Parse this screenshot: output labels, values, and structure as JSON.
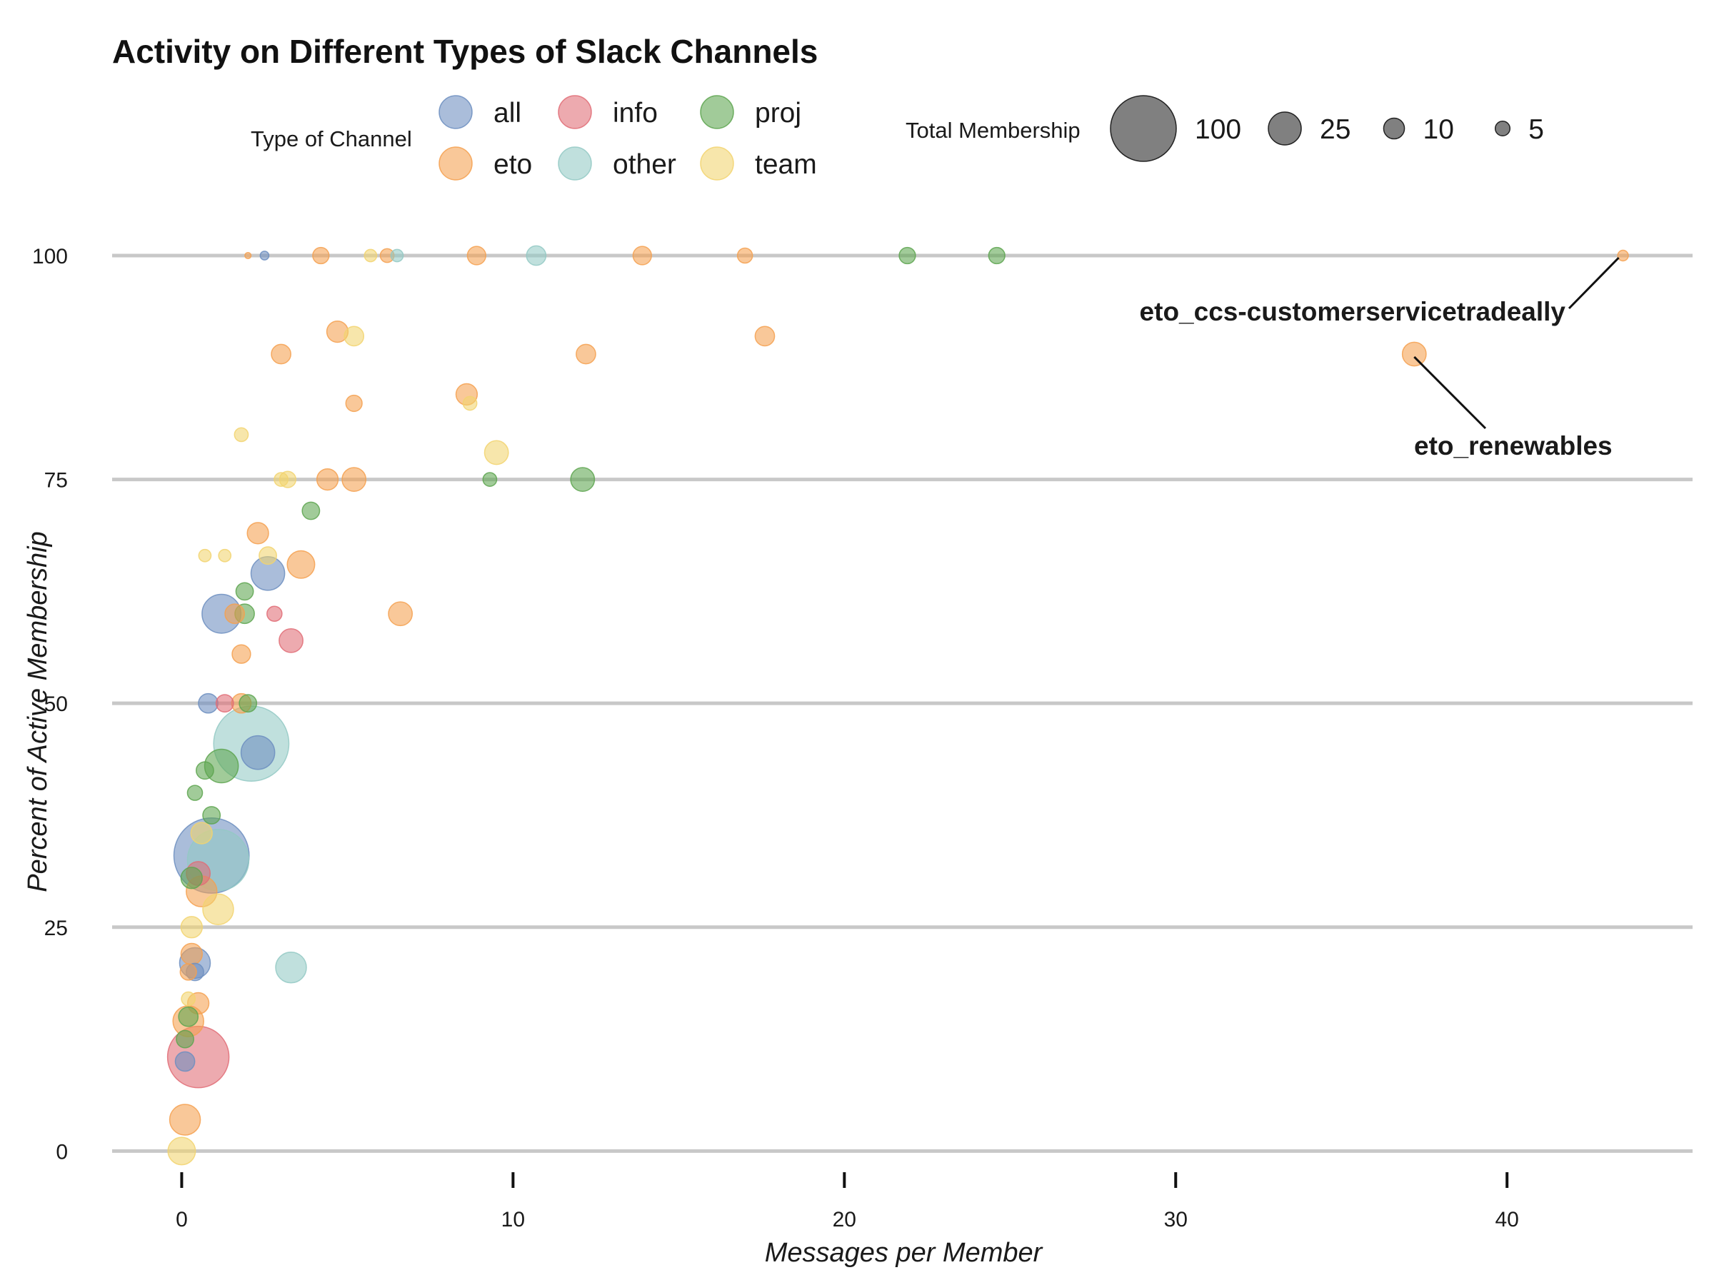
{
  "chart_data": {
    "type": "scatter",
    "title": "Activity on Different Types of Slack Channels",
    "xlabel": "Messages per Member",
    "ylabel": "Percent of Active Membership",
    "xlim": [
      -2.1,
      45.6
    ],
    "ylim": [
      -3,
      100
    ],
    "x_ticks": [
      0,
      10,
      20,
      30,
      40
    ],
    "y_ticks": [
      0,
      25,
      50,
      75,
      100
    ],
    "grid": "horizontal major lines",
    "legends": {
      "color": {
        "title": "Type of Channel",
        "placement": "top",
        "entries": [
          {
            "label": "all",
            "color": "#6C8EBF"
          },
          {
            "label": "info",
            "color": "#E06C75"
          },
          {
            "label": "proj",
            "color": "#5DA54F"
          },
          {
            "label": "eto",
            "color": "#F4A04F"
          },
          {
            "label": "other",
            "color": "#93C9C4"
          },
          {
            "label": "team",
            "color": "#F2D46F"
          }
        ]
      },
      "size": {
        "title": "Total Membership",
        "placement": "top-right",
        "entries": [
          {
            "label": "100",
            "value": 100
          },
          {
            "label": "25",
            "value": 25
          },
          {
            "label": "10",
            "value": 10
          },
          {
            "label": "5",
            "value": 5
          }
        ]
      }
    },
    "annotations": [
      {
        "label": "eto_ccs-customerservicetradeally",
        "x": 43.5,
        "y": 100
      },
      {
        "label": "eto_renewables",
        "x": 37.2,
        "y": 89
      }
    ],
    "series": [
      {
        "name": "all",
        "color": "#6C8EBF",
        "points": [
          {
            "x": 0.9,
            "y": 33,
            "size": 150
          },
          {
            "x": 1.2,
            "y": 60,
            "size": 40
          },
          {
            "x": 2.3,
            "y": 44.5,
            "size": 30
          },
          {
            "x": 2.6,
            "y": 64.5,
            "size": 30
          },
          {
            "x": 0.4,
            "y": 21,
            "size": 25
          },
          {
            "x": 0.8,
            "y": 50,
            "size": 10
          },
          {
            "x": 0.1,
            "y": 10,
            "size": 10
          },
          {
            "x": 0.4,
            "y": 20,
            "size": 8
          },
          {
            "x": 2.5,
            "y": 100,
            "size": 2
          }
        ]
      },
      {
        "name": "info",
        "color": "#E06C75",
        "points": [
          {
            "x": 0.5,
            "y": 10.5,
            "size": 100
          },
          {
            "x": 0.5,
            "y": 31,
            "size": 15
          },
          {
            "x": 3.3,
            "y": 57,
            "size": 15
          },
          {
            "x": 1.3,
            "y": 50,
            "size": 8
          },
          {
            "x": 2.8,
            "y": 60,
            "size": 6
          }
        ]
      },
      {
        "name": "proj",
        "color": "#5DA54F",
        "points": [
          {
            "x": 1.2,
            "y": 43,
            "size": 30
          },
          {
            "x": 12.1,
            "y": 75,
            "size": 15
          },
          {
            "x": 0.3,
            "y": 30.5,
            "size": 12
          },
          {
            "x": 0.2,
            "y": 15,
            "size": 10
          },
          {
            "x": 1.9,
            "y": 60,
            "size": 10
          },
          {
            "x": 0.9,
            "y": 37.5,
            "size": 8
          },
          {
            "x": 2.0,
            "y": 50,
            "size": 8
          },
          {
            "x": 0.7,
            "y": 42.5,
            "size": 8
          },
          {
            "x": 3.9,
            "y": 71.5,
            "size": 8
          },
          {
            "x": 1.9,
            "y": 62.5,
            "size": 8
          },
          {
            "x": 0.1,
            "y": 12.5,
            "size": 8
          },
          {
            "x": 0.4,
            "y": 40,
            "size": 6
          },
          {
            "x": 21.9,
            "y": 100,
            "size": 7
          },
          {
            "x": 24.6,
            "y": 100,
            "size": 7
          },
          {
            "x": 9.3,
            "y": 75,
            "size": 5
          }
        ]
      },
      {
        "name": "eto",
        "color": "#F4A04F",
        "points": [
          {
            "x": 37.2,
            "y": 89,
            "size": 15
          },
          {
            "x": 43.5,
            "y": 100,
            "size": 3
          },
          {
            "x": 0.1,
            "y": 3.5,
            "size": 25
          },
          {
            "x": 0.2,
            "y": 14.5,
            "size": 25
          },
          {
            "x": 3.6,
            "y": 65.5,
            "size": 20
          },
          {
            "x": 6.6,
            "y": 60,
            "size": 15
          },
          {
            "x": 5.2,
            "y": 75,
            "size": 15
          },
          {
            "x": 0.6,
            "y": 29,
            "size": 25
          },
          {
            "x": 2.3,
            "y": 69,
            "size": 12
          },
          {
            "x": 4.7,
            "y": 91.5,
            "size": 12
          },
          {
            "x": 8.6,
            "y": 84.5,
            "size": 12
          },
          {
            "x": 4.4,
            "y": 75,
            "size": 12
          },
          {
            "x": 0.5,
            "y": 16.5,
            "size": 12
          },
          {
            "x": 0.3,
            "y": 22,
            "size": 12
          },
          {
            "x": 1.6,
            "y": 60,
            "size": 10
          },
          {
            "x": 1.8,
            "y": 50,
            "size": 10
          },
          {
            "x": 1.8,
            "y": 55.5,
            "size": 9
          },
          {
            "x": 3.0,
            "y": 89,
            "size": 10
          },
          {
            "x": 12.2,
            "y": 89,
            "size": 10
          },
          {
            "x": 17.6,
            "y": 91,
            "size": 10
          },
          {
            "x": 13.9,
            "y": 100,
            "size": 9
          },
          {
            "x": 8.9,
            "y": 100,
            "size": 9
          },
          {
            "x": 4.2,
            "y": 100,
            "size": 7
          },
          {
            "x": 17.0,
            "y": 100,
            "size": 6
          },
          {
            "x": 5.2,
            "y": 83.5,
            "size": 7
          },
          {
            "x": 6.2,
            "y": 100,
            "size": 5
          },
          {
            "x": 0.2,
            "y": 20,
            "size": 7
          },
          {
            "x": 2.0,
            "y": 100,
            "size": 1
          }
        ]
      },
      {
        "name": "other",
        "color": "#93C9C4",
        "points": [
          {
            "x": 2.1,
            "y": 45.5,
            "size": 150
          },
          {
            "x": 1.1,
            "y": 32.5,
            "size": 100
          },
          {
            "x": 3.3,
            "y": 20.5,
            "size": 25
          },
          {
            "x": 10.7,
            "y": 100,
            "size": 10
          },
          {
            "x": 6.5,
            "y": 100,
            "size": 4
          }
        ]
      },
      {
        "name": "team",
        "color": "#F2D46F",
        "points": [
          {
            "x": 1.1,
            "y": 27,
            "size": 25
          },
          {
            "x": 9.5,
            "y": 78,
            "size": 15
          },
          {
            "x": 0.6,
            "y": 35.5,
            "size": 12
          },
          {
            "x": 0.3,
            "y": 25,
            "size": 12
          },
          {
            "x": 5.2,
            "y": 91,
            "size": 10
          },
          {
            "x": 3.2,
            "y": 75,
            "size": 7
          },
          {
            "x": 2.6,
            "y": 66.5,
            "size": 8
          },
          {
            "x": 3.0,
            "y": 75,
            "size": 5
          },
          {
            "x": 1.8,
            "y": 80,
            "size": 5
          },
          {
            "x": 8.7,
            "y": 83.5,
            "size": 5
          },
          {
            "x": 0.7,
            "y": 66.5,
            "size": 4
          },
          {
            "x": 1.3,
            "y": 66.5,
            "size": 4
          },
          {
            "x": 5.7,
            "y": 100,
            "size": 4
          },
          {
            "x": 0.0,
            "y": 0,
            "size": 20
          },
          {
            "x": 0.2,
            "y": 17,
            "size": 5
          }
        ]
      }
    ]
  }
}
